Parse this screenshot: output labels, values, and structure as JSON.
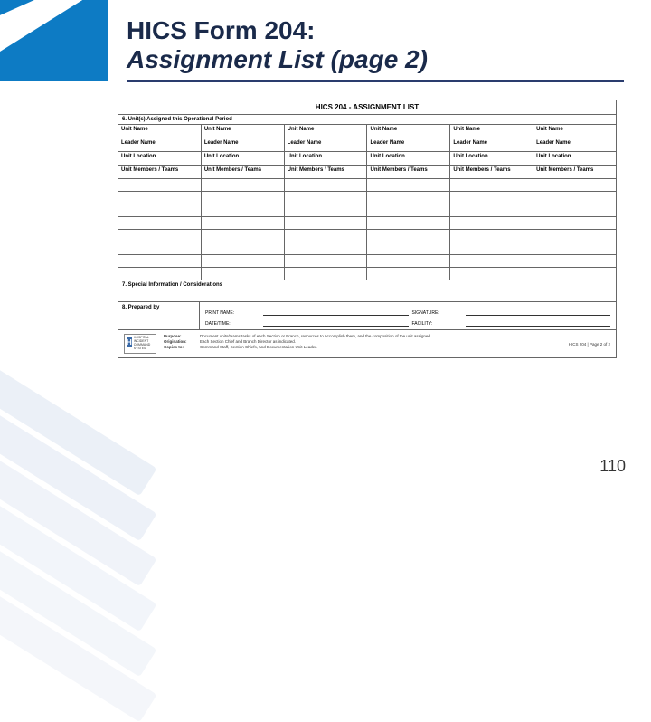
{
  "slide": {
    "title_line1": "HICS Form 204:",
    "title_line2": "Assignment List (page 2)",
    "page_number": "110"
  },
  "colors": {
    "brand_blue": "#0d7bc4",
    "title_navy": "#1a2a4a",
    "rule_navy": "#2a3c6e",
    "pale_bar": "#e9eef6",
    "border_gray": "#666666",
    "logo_blue": "#3a6aa8"
  },
  "form": {
    "title": "HICS 204 - ASSIGNMENT LIST",
    "section6_label": "6. Unit(s) Assigned this Operational Period",
    "unit_header_rows": [
      {
        "label": "Unit Name"
      },
      {
        "label": "Leader Name"
      },
      {
        "label": "Unit Location"
      },
      {
        "label": "Unit Members / Teams"
      }
    ],
    "unit_columns": 6,
    "blank_rows": 8,
    "section7_label": "7. Special Information / Considerations",
    "section8": {
      "label": "8. Prepared by",
      "print_name_label": "PRINT NAME:",
      "signature_label": "SIGNATURE:",
      "datetime_label": "DATE/TIME:",
      "facility_label": "FACILITY:"
    },
    "footer": {
      "logo_text": "HOSPITAL INCIDENT COMMAND SYSTEM",
      "logo_letter": "H",
      "purpose_key": "Purpose:",
      "purpose_val": "Document units/teams/tasks of each Section or Branch, resources to accomplish them, and the composition of the unit assigned.",
      "origination_key": "Origination:",
      "origination_val": "Each Section Chief and Branch Director as indicated.",
      "copies_key": "Copies to:",
      "copies_val": "Command Staff, Section Chiefs, and Documentation Unit Leader.",
      "page_ref": "HICS 204 | Page 2 of 2"
    }
  }
}
